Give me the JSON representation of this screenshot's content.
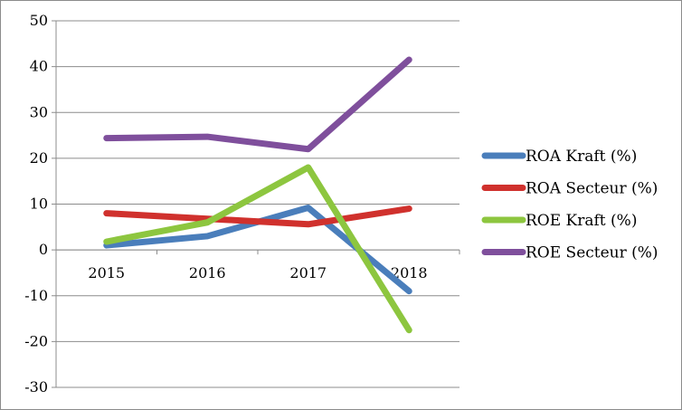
{
  "chart_data": {
    "type": "line",
    "title": "",
    "xlabel": "",
    "ylabel": "",
    "categories": [
      "2015",
      "2016",
      "2017",
      "2018"
    ],
    "ylim": [
      -30,
      50
    ],
    "yticks": [
      -30,
      -20,
      -10,
      0,
      10,
      20,
      30,
      40,
      50
    ],
    "grid": true,
    "legend_position": "right",
    "series": [
      {
        "name": "ROA Kraft (%)",
        "color": "#4a7ebb",
        "values": [
          1,
          3,
          9.2,
          -9
        ]
      },
      {
        "name": "ROA Secteur (%)",
        "color": "#d0312d",
        "values": [
          8,
          6.8,
          5.6,
          9
        ]
      },
      {
        "name": "ROE Kraft (%)",
        "color": "#8dc63f",
        "values": [
          1.8,
          6,
          18,
          -17.5
        ]
      },
      {
        "name": "ROE Secteur (%)",
        "color": "#7f4f9c",
        "values": [
          24.4,
          24.7,
          22,
          41.5
        ]
      }
    ]
  }
}
